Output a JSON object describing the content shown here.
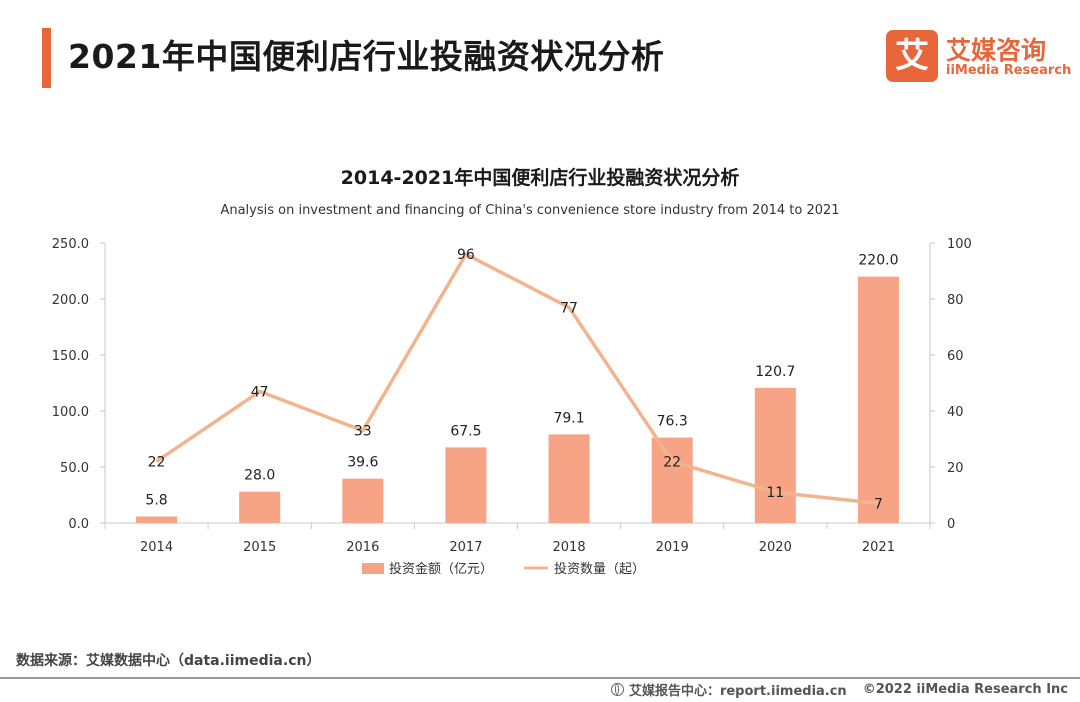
{
  "header": {
    "title": "2021年中国便利店行业投融资状况分析",
    "logo_mark": "艾",
    "logo_cn": "艾媒咨询",
    "logo_en": "iiMedia Research"
  },
  "colors": {
    "accent": "#e8663a",
    "bar": "#f7a486",
    "line": "#f2b48e"
  },
  "chart_data": {
    "type": "bar",
    "title": "2014-2021年中国便利店行业投融资状况分析",
    "subtitle": "Analysis on investment and financing of China's convenience store industry from 2014 to 2021",
    "categories": [
      "2014",
      "2015",
      "2016",
      "2017",
      "2018",
      "2019",
      "2020",
      "2021"
    ],
    "series": [
      {
        "name": "投资金额（亿元）",
        "type": "bar",
        "axis": "left",
        "values": [
          5.8,
          28.0,
          39.6,
          67.5,
          79.1,
          76.3,
          120.7,
          220.0
        ]
      },
      {
        "name": "投资数量（起）",
        "type": "line",
        "axis": "right",
        "values": [
          22,
          47,
          33,
          96,
          77,
          22,
          11,
          7
        ]
      }
    ],
    "y_left": {
      "ylim": [
        0,
        250
      ],
      "ticks": [
        "0.0",
        "50.0",
        "100.0",
        "150.0",
        "200.0",
        "250.0"
      ]
    },
    "y_right": {
      "ylim": [
        0,
        100
      ],
      "ticks": [
        "0",
        "20",
        "40",
        "60",
        "80",
        "100"
      ]
    },
    "bar_labels": [
      "5.8",
      "28.0",
      "39.6",
      "67.5",
      "79.1",
      "76.3",
      "120.7",
      "220.0"
    ],
    "line_labels": [
      "22",
      "47",
      "33",
      "96",
      "77",
      "22",
      "11",
      "7"
    ],
    "legend": "bottom",
    "grid": false
  },
  "footer": {
    "source": "数据来源：艾媒数据中心（data.iimedia.cn）",
    "report": "艾媒报告中心：report.iimedia.cn",
    "copyright": "©2022  iiMedia Research  Inc"
  }
}
